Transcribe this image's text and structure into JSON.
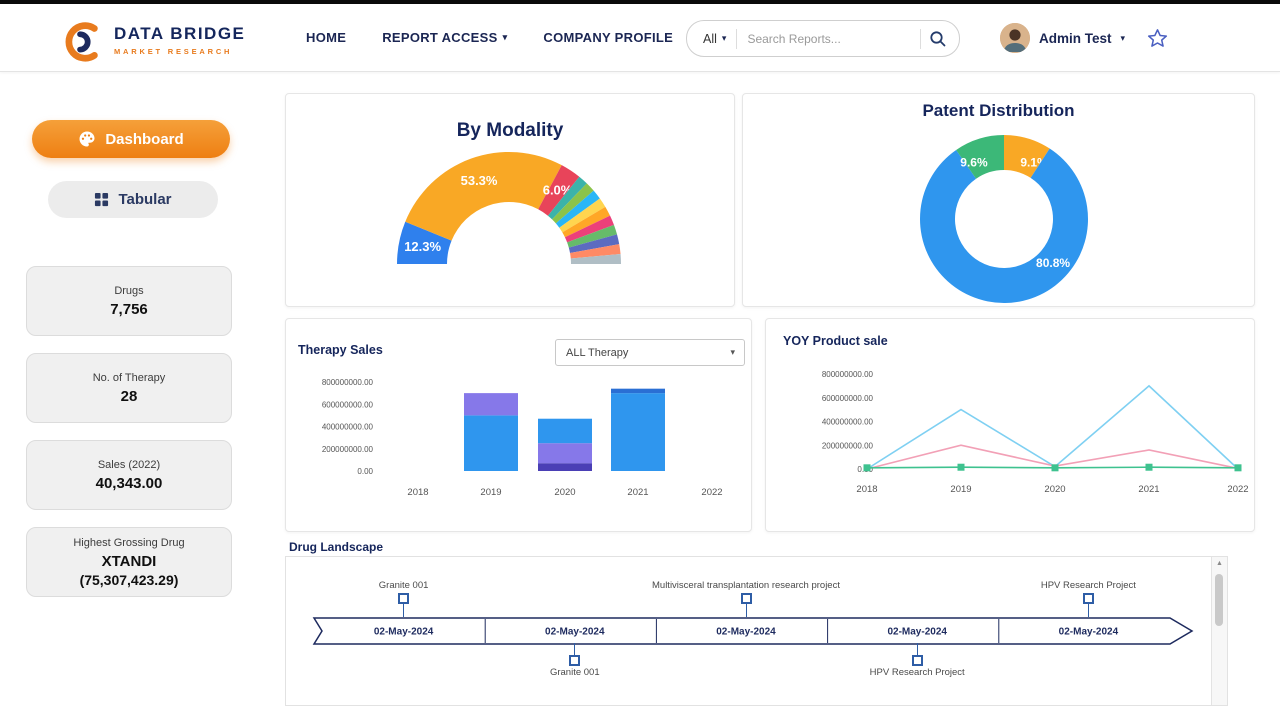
{
  "header": {
    "logo_title": "DATA BRIDGE",
    "logo_subtitle": "MARKET RESEARCH",
    "nav": [
      {
        "label": "HOME",
        "caret": false
      },
      {
        "label": "REPORT ACCESS",
        "caret": true
      },
      {
        "label": "COMPANY PROFILE",
        "caret": false
      }
    ],
    "search": {
      "filter": "All",
      "placeholder": "Search Reports..."
    },
    "user_name": "Admin Test"
  },
  "sidebar": {
    "dashboard_label": "Dashboard",
    "tabular_label": "Tabular",
    "stats": [
      {
        "label": "Drugs",
        "value": "7,756"
      },
      {
        "label": "No. of Therapy",
        "value": "28"
      },
      {
        "label": "Sales (2022)",
        "value": "40,343.00"
      },
      {
        "label": "Highest Grossing Drug",
        "value": "XTANDI",
        "value2": "(75,307,423.29)"
      }
    ]
  },
  "colors": {
    "navy": "#1b2653",
    "orange": "#ee7f12",
    "chart_blue": "#2f96ee",
    "chart_orange": "#f9a825",
    "chart_green": "#3cb878"
  },
  "chart_data": [
    {
      "type": "pie",
      "variant": "semi-donut",
      "title": "By Modality",
      "slices": [
        {
          "label": "12.3%",
          "value": 12.3,
          "color": "#2f80ed"
        },
        {
          "label": "53.3%",
          "value": 53.3,
          "color": "#f9a825"
        },
        {
          "label": "6.0%",
          "value": 6.0,
          "color": "#e8445a"
        },
        {
          "value": 2.84,
          "color": "#3bb3a9"
        },
        {
          "value": 2.84,
          "color": "#8bc34a"
        },
        {
          "value": 2.84,
          "color": "#29b6f6"
        },
        {
          "value": 2.84,
          "color": "#ffd54f"
        },
        {
          "value": 2.84,
          "color": "#ffa726"
        },
        {
          "value": 2.84,
          "color": "#ec407a"
        },
        {
          "value": 2.84,
          "color": "#66bb6a"
        },
        {
          "value": 2.84,
          "color": "#5c6bc0"
        },
        {
          "value": 2.84,
          "color": "#ff8a65"
        },
        {
          "value": 2.84,
          "color": "#b0bec5"
        }
      ]
    },
    {
      "type": "pie",
      "variant": "donut",
      "title": "Patent Distribution",
      "slices": [
        {
          "label": "9.1%",
          "value": 9.1,
          "color": "#f9a825"
        },
        {
          "label": "80.8%",
          "value": 80.8,
          "color": "#2f96ee"
        },
        {
          "label": "9.6%",
          "value": 9.6,
          "color": "#3cb878"
        }
      ]
    },
    {
      "type": "bar",
      "stacked": true,
      "title": "Therapy Sales",
      "filter_label": "ALL Therapy",
      "categories": [
        "2018",
        "2019",
        "2020",
        "2021",
        "2022"
      ],
      "yticks": [
        "0.00",
        "200000000.00",
        "400000000.00",
        "600000000.00",
        "800000000.00"
      ],
      "ymax": 800000000,
      "bars": [
        {
          "category": "2018",
          "segments": []
        },
        {
          "category": "2019",
          "segments": [
            {
              "color": "#2f96ee",
              "value": 500000000
            },
            {
              "color": "#8678e9",
              "value": 200000000
            }
          ]
        },
        {
          "category": "2020",
          "segments": [
            {
              "color": "#4a3fb5",
              "value": 70000000
            },
            {
              "color": "#8678e9",
              "value": 180000000
            },
            {
              "color": "#2f96ee",
              "value": 220000000
            }
          ]
        },
        {
          "category": "2021",
          "segments": [
            {
              "color": "#2f96ee",
              "value": 700000000
            },
            {
              "color": "#2a6fd4",
              "value": 40000000
            }
          ]
        },
        {
          "category": "2022",
          "segments": []
        }
      ]
    },
    {
      "type": "line",
      "title": "YOY Product sale",
      "x": [
        "2018",
        "2019",
        "2020",
        "2021",
        "2022"
      ],
      "yticks": [
        "0.00",
        "200000000.00",
        "400000000.00",
        "600000000.00",
        "800000000.00"
      ],
      "ymax": 800000000,
      "series": [
        {
          "name": "series-blue",
          "color": "#7fd0f2",
          "values": [
            0,
            500000000,
            20000000,
            700000000,
            0
          ]
        },
        {
          "name": "series-pink",
          "color": "#f2a0b6",
          "values": [
            0,
            200000000,
            25000000,
            160000000,
            5000000
          ]
        },
        {
          "name": "series-green",
          "color": "#3ec28f",
          "marker": "square",
          "values": [
            10000000,
            15000000,
            10000000,
            15000000,
            10000000
          ]
        }
      ]
    },
    {
      "type": "timeline",
      "title": "Drug Landscape",
      "dates": [
        "02-May-2024",
        "02-May-2024",
        "02-May-2024",
        "02-May-2024",
        "02-May-2024"
      ],
      "milestones_top": [
        {
          "label": "Granite 001",
          "column": 1
        },
        {
          "label": "Multivisceral transplantation research project",
          "column": 3
        },
        {
          "label": "HPV Research Project",
          "column": 5
        }
      ],
      "milestones_bottom": [
        {
          "label": "Granite 001",
          "column": 2
        },
        {
          "label": "HPV Research Project",
          "column": 4
        }
      ]
    }
  ]
}
